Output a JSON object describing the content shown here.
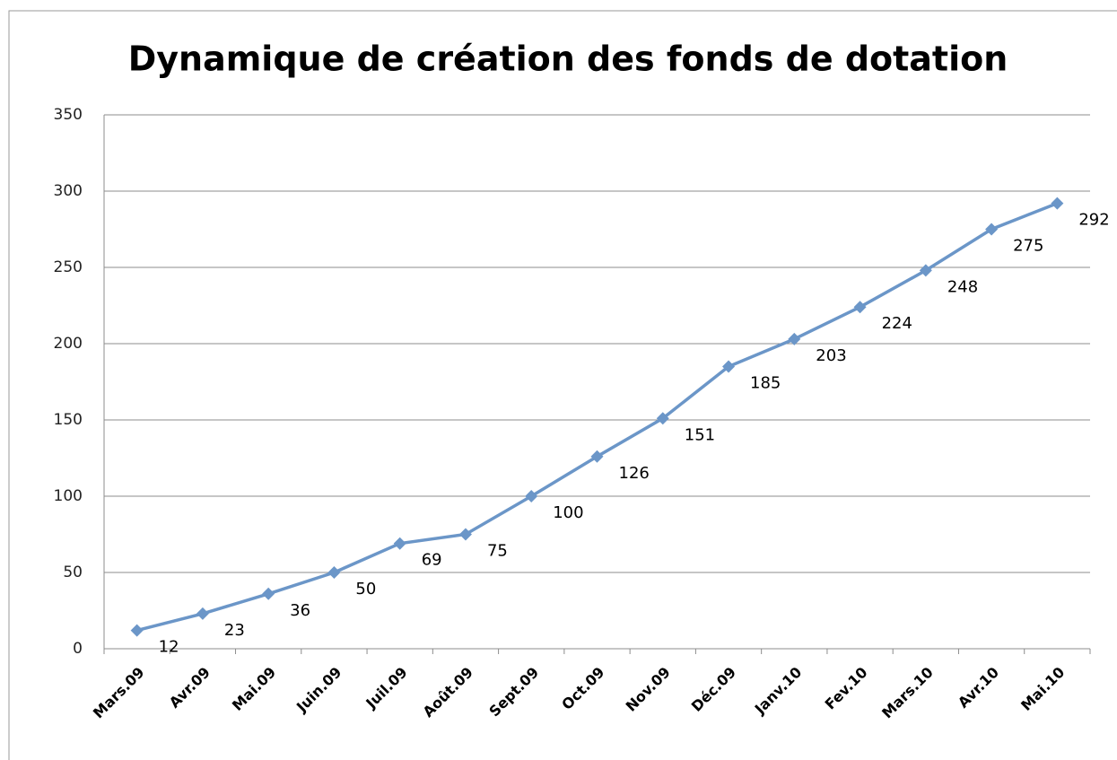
{
  "chart_data": {
    "type": "line",
    "title": "Dynamique de création des fonds de dotation",
    "categories": [
      "Mars.09",
      "Avr.09",
      "Mai.09",
      "Juin.09",
      "Juil.09",
      "Août.09",
      "Sept.09",
      "Oct.09",
      "Nov.09",
      "Déc.09",
      "Janv.10",
      "Fev.10",
      "Mars.10",
      "Avr.10",
      "Mai.10"
    ],
    "series": [
      {
        "color": "#6b96c8",
        "values": [
          12,
          23,
          36,
          50,
          69,
          75,
          100,
          126,
          151,
          185,
          203,
          224,
          248,
          275,
          292
        ]
      }
    ],
    "ylim": [
      0,
      350
    ],
    "yticks": [
      0,
      50,
      100,
      150,
      200,
      250,
      300,
      350
    ],
    "grid": true
  }
}
